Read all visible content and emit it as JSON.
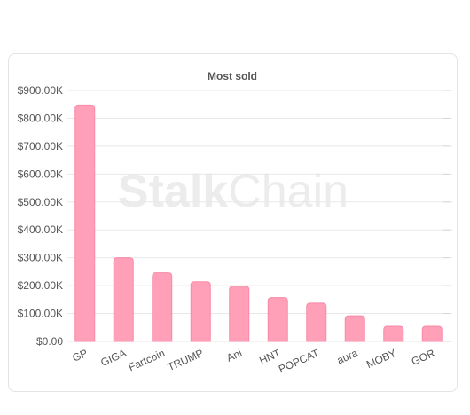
{
  "watermark": {
    "bold": "Stalk",
    "light": "Chain"
  },
  "chart_data": {
    "type": "bar",
    "title": "Most sold",
    "xlabel": "",
    "ylabel": "",
    "categories": [
      "GP",
      "GIGA",
      "Fartcoin",
      "TRUMP",
      "Ani",
      "HNT",
      "POPCAT",
      "aura",
      "MOBY",
      "GOR"
    ],
    "values": [
      848000,
      300000,
      246000,
      214000,
      198000,
      157000,
      137000,
      92000,
      54000,
      54000
    ],
    "ylim": [
      0,
      900000
    ],
    "yticks": [
      {
        "value": 0,
        "label": "$0.00"
      },
      {
        "value": 100000,
        "label": "$100.00K"
      },
      {
        "value": 200000,
        "label": "$200.00K"
      },
      {
        "value": 300000,
        "label": "$300.00K"
      },
      {
        "value": 400000,
        "label": "$400.00K"
      },
      {
        "value": 500000,
        "label": "$500.00K"
      },
      {
        "value": 600000,
        "label": "$600.00K"
      },
      {
        "value": 700000,
        "label": "$700.00K"
      },
      {
        "value": 800000,
        "label": "$800.00K"
      },
      {
        "value": 900000,
        "label": "$900.00K"
      }
    ],
    "grid": true,
    "legend": "none",
    "colors": {
      "bar_fill": "#ff9fb8",
      "bar_stroke": "#f78aa7",
      "grid": "#e8e8e8",
      "text": "#555555",
      "title": "#555555",
      "watermark": "#ececec"
    }
  }
}
